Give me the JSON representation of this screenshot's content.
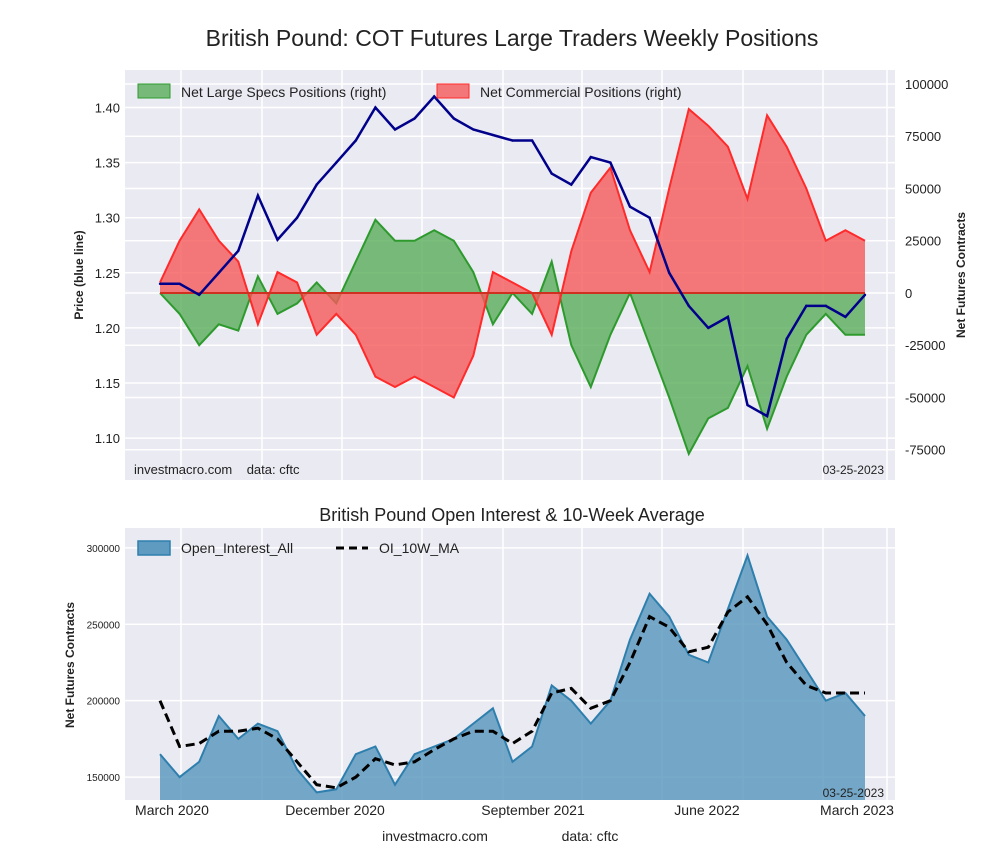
{
  "title": "British Pound: COT Futures Large Traders Weekly Positions",
  "colors": {
    "background": "#eaeaf2",
    "grid": "#ffffff",
    "price": "#00008b",
    "specs_line": "#2e9a2e",
    "specs_fill": "#5aad5a",
    "comm_line": "#ff2a2a",
    "comm_fill": "#f55a5a",
    "oi_line": "#2e7fad",
    "oi_fill": "#5f9bc0",
    "ma": "#000000"
  },
  "chart_data": [
    {
      "type": "line",
      "title": "British Pound: COT Futures Large Traders Weekly Positions",
      "ylabel_left": "Price (blue line)",
      "ylabel_right": "Net Futures Contracts",
      "ylim_left": [
        1.062,
        1.434
      ],
      "ylim_right": [
        -89500,
        106700
      ],
      "yticks_left": [
        "1.10",
        "1.15",
        "1.20",
        "1.25",
        "1.30",
        "1.35",
        "1.40"
      ],
      "yticks_right": [
        "-75000",
        "-50000",
        "-25000",
        "0",
        "25000",
        "50000",
        "75000",
        "100000"
      ],
      "x": [
        "2020-03",
        "2020-04",
        "2020-05",
        "2020-06",
        "2020-07",
        "2020-08",
        "2020-09",
        "2020-10",
        "2020-11",
        "2020-12",
        "2021-01",
        "2021-02",
        "2021-03",
        "2021-04",
        "2021-05",
        "2021-06",
        "2021-07",
        "2021-08",
        "2021-09",
        "2021-10",
        "2021-11",
        "2021-12",
        "2022-01",
        "2022-02",
        "2022-03",
        "2022-04",
        "2022-05",
        "2022-06",
        "2022-07",
        "2022-08",
        "2022-09",
        "2022-10",
        "2022-11",
        "2022-12",
        "2023-01",
        "2023-02",
        "2023-03"
      ],
      "series": [
        {
          "name": "Price",
          "axis": "left",
          "values": [
            1.24,
            1.24,
            1.23,
            1.25,
            1.27,
            1.32,
            1.28,
            1.3,
            1.33,
            1.35,
            1.37,
            1.4,
            1.38,
            1.39,
            1.41,
            1.39,
            1.38,
            1.375,
            1.37,
            1.37,
            1.34,
            1.33,
            1.355,
            1.35,
            1.31,
            1.3,
            1.25,
            1.22,
            1.2,
            1.21,
            1.13,
            1.12,
            1.19,
            1.22,
            1.22,
            1.21,
            1.23
          ]
        },
        {
          "name": "Net Large Specs Positions (right)",
          "axis": "right",
          "values": [
            0,
            -10000,
            -25000,
            -15000,
            -18000,
            8000,
            -10000,
            -5000,
            5000,
            -5000,
            15000,
            35000,
            25000,
            25000,
            30000,
            25000,
            10000,
            -15000,
            0,
            -10000,
            15000,
            -25000,
            -45000,
            -20000,
            0,
            -25000,
            -50000,
            -77000,
            -60000,
            -55000,
            -35000,
            -65000,
            -40000,
            -20000,
            -10000,
            -20000,
            -20000
          ]
        },
        {
          "name": "Net Commercial Positions (right)",
          "axis": "right",
          "values": [
            5000,
            25000,
            40000,
            25000,
            15000,
            -15000,
            10000,
            5000,
            -20000,
            -10000,
            -20000,
            -40000,
            -45000,
            -40000,
            -45000,
            -50000,
            -30000,
            10000,
            5000,
            0,
            -20000,
            20000,
            48000,
            60000,
            30000,
            10000,
            50000,
            88000,
            80000,
            70000,
            45000,
            85000,
            70000,
            50000,
            25000,
            30000,
            25000
          ]
        }
      ],
      "annotations": {
        "source": "investmacro.com    data: cftc",
        "date": "03-25-2023"
      },
      "legend": "top-left"
    },
    {
      "type": "area",
      "title": "British Pound Open Interest & 10-Week Average",
      "ylabel": "Net Futures Contracts",
      "ylim": [
        135000,
        313000
      ],
      "yticks": [
        "150000",
        "200000",
        "250000",
        "300000"
      ],
      "xtick_labels": [
        "March 2020",
        "December 2020",
        "September 2021",
        "June 2022",
        "March 2023"
      ],
      "series": [
        {
          "name": "Open_Interest_All",
          "values": [
            165000,
            150000,
            160000,
            190000,
            175000,
            185000,
            180000,
            155000,
            140000,
            142000,
            165000,
            170000,
            145000,
            165000,
            170000,
            175000,
            185000,
            195000,
            160000,
            170000,
            210000,
            200000,
            185000,
            200000,
            240000,
            270000,
            255000,
            230000,
            225000,
            260000,
            295000,
            255000,
            240000,
            220000,
            200000,
            205000,
            190000
          ]
        },
        {
          "name": "OI_10W_MA",
          "values": [
            200000,
            170000,
            172000,
            180000,
            180000,
            182000,
            175000,
            160000,
            145000,
            143000,
            150000,
            162000,
            158000,
            160000,
            168000,
            175000,
            180000,
            180000,
            172000,
            180000,
            205000,
            208000,
            195000,
            200000,
            225000,
            255000,
            248000,
            232000,
            235000,
            258000,
            268000,
            250000,
            225000,
            210000,
            205000,
            205000,
            205000
          ]
        }
      ],
      "annotations": {
        "date": "03-25-2023"
      },
      "legend": "top-left"
    }
  ],
  "footer": {
    "site": "investmacro.com",
    "data": "data: cftc"
  }
}
